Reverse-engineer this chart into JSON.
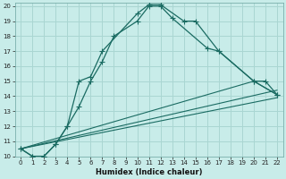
{
  "xlabel": "Humidex (Indice chaleur)",
  "bg_color": "#c8ece9",
  "grid_color": "#aad6d2",
  "line_color": "#1a6b62",
  "xlim": [
    -0.5,
    22.5
  ],
  "ylim": [
    10,
    20.2
  ],
  "xticks": [
    0,
    1,
    2,
    3,
    4,
    5,
    6,
    7,
    8,
    9,
    10,
    11,
    12,
    13,
    14,
    15,
    16,
    17,
    18,
    19,
    20,
    21,
    22
  ],
  "yticks": [
    10,
    11,
    12,
    13,
    14,
    15,
    16,
    17,
    18,
    19,
    20
  ],
  "curve1_x": [
    0,
    1,
    2,
    3,
    4,
    5,
    6,
    7,
    10,
    11,
    12,
    14,
    15,
    17,
    20,
    21,
    22
  ],
  "curve1_y": [
    10.5,
    10.0,
    10.0,
    10.8,
    12.0,
    15.0,
    15.3,
    17.0,
    19.5,
    20.1,
    20.1,
    19.0,
    19.0,
    17.0,
    15.0,
    15.0,
    14.1
  ],
  "curve2_x": [
    0,
    1,
    2,
    3,
    4,
    5,
    6,
    7,
    8,
    10,
    11,
    12,
    13,
    16,
    17,
    20,
    22
  ],
  "curve2_y": [
    10.5,
    10.0,
    10.0,
    10.8,
    12.0,
    13.3,
    15.0,
    16.3,
    18.0,
    19.0,
    20.0,
    20.0,
    19.2,
    17.2,
    17.0,
    15.0,
    14.1
  ],
  "line1_x": [
    0,
    20,
    22
  ],
  "line1_y": [
    10.5,
    15.0,
    14.1
  ],
  "line2_x": [
    0,
    22
  ],
  "line2_y": [
    10.5,
    14.4
  ],
  "line3_x": [
    0,
    22
  ],
  "line3_y": [
    10.5,
    13.9
  ]
}
